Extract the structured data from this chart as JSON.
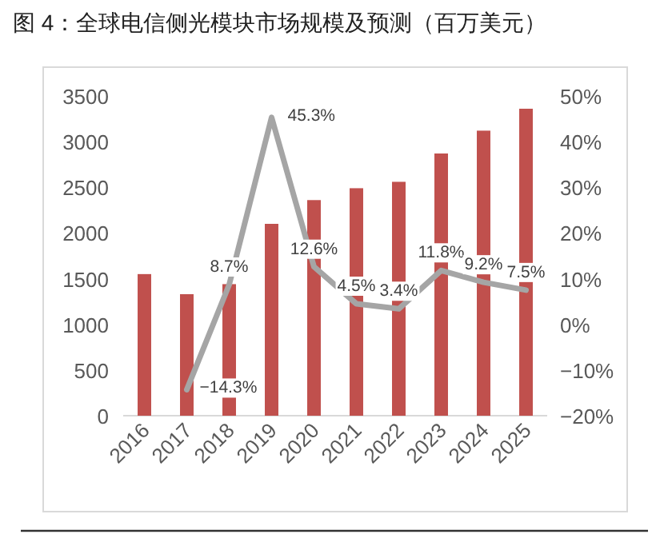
{
  "chart_data": {
    "type": "bar",
    "title": "图 4：全球电信侧光模块市场规模及预测（百万美元）",
    "categories": [
      "2016",
      "2017",
      "2018",
      "2019",
      "2020",
      "2021",
      "2022",
      "2023",
      "2024",
      "2025"
    ],
    "series": [
      {
        "color": "#c0504d",
        "values": [
          1550,
          1330,
          1440,
          2100,
          2360,
          2490,
          2560,
          2870,
          3120,
          3360
        ]
      },
      {
        "type": "line",
        "axis": "y2",
        "color": "#a5a5a5",
        "values": [
          null,
          -14.3,
          8.7,
          45.3,
          12.6,
          4.5,
          3.4,
          11.8,
          9.2,
          7.5
        ],
        "value_labels": [
          null,
          "−14.3%",
          "8.7%",
          "45.3%",
          "12.6%",
          "4.5%",
          "3.4%",
          "11.8%",
          "9.2%",
          "7.5%"
        ]
      }
    ],
    "ylim": [
      0,
      3500
    ],
    "yticks": [
      0,
      500,
      1000,
      1500,
      2000,
      2500,
      3000,
      3500
    ],
    "y2lim": [
      -20,
      50
    ],
    "y2ticks": [
      {
        "value": -20,
        "label": "−20%"
      },
      {
        "value": -10,
        "label": "−10%"
      },
      {
        "value": 0,
        "label": "0%"
      },
      {
        "value": 10,
        "label": "10%"
      },
      {
        "value": 20,
        "label": "20%"
      },
      {
        "value": 30,
        "label": "30%"
      },
      {
        "value": 40,
        "label": "40%"
      },
      {
        "value": 50,
        "label": "50%"
      }
    ],
    "grid": false,
    "marker": "none",
    "line_style": "solid"
  }
}
